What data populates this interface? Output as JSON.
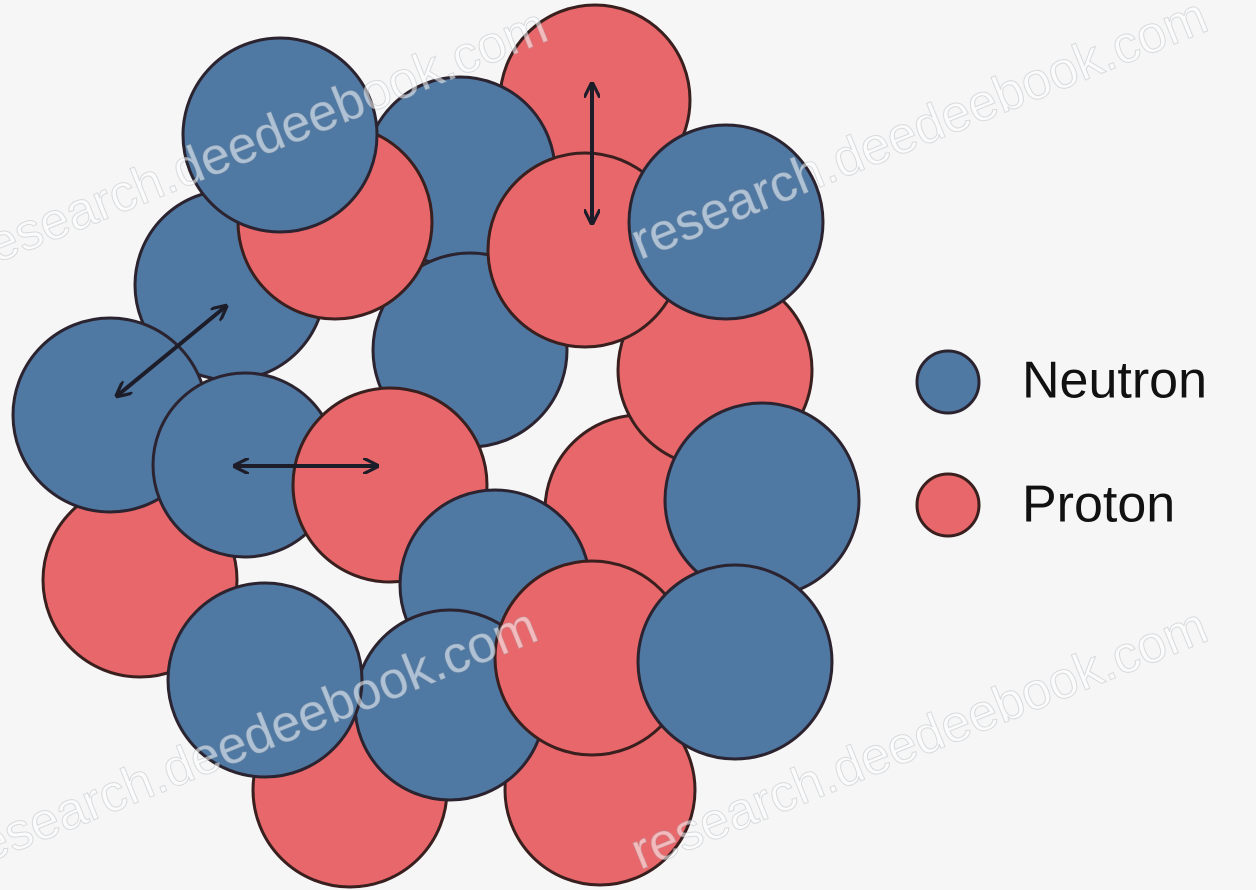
{
  "legend": {
    "items": [
      {
        "label": "Neutron",
        "color": "#4f78a3"
      },
      {
        "label": "Proton",
        "color": "#e8676a"
      }
    ]
  },
  "watermark": "research.deedeebook.com"
}
